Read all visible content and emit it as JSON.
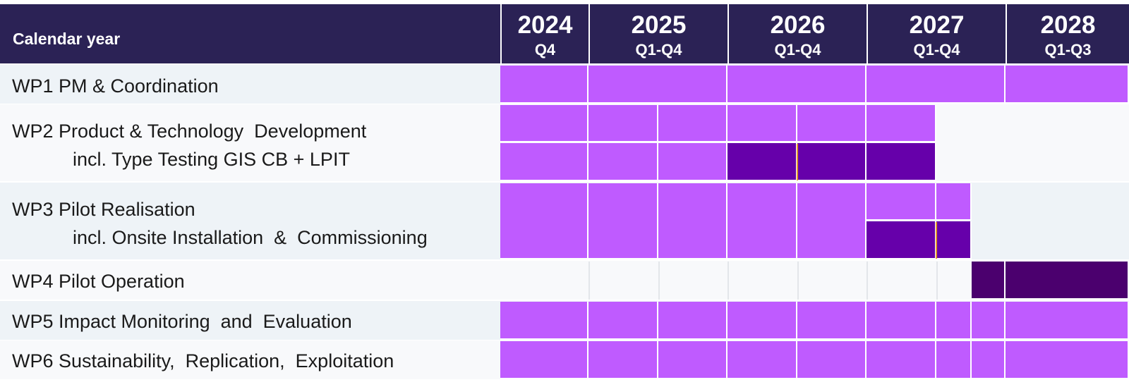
{
  "header": {
    "label": "Calendar year",
    "years": [
      {
        "year": "2024",
        "quarters": "Q4"
      },
      {
        "year": "2025",
        "quarters": "Q1-Q4"
      },
      {
        "year": "2026",
        "quarters": "Q1-Q4"
      },
      {
        "year": "2027",
        "quarters": "Q1-Q4"
      },
      {
        "year": "2028",
        "quarters": "Q1-Q3"
      }
    ]
  },
  "rows": [
    {
      "id": "wp1",
      "label": "WP1 PM & Coordination",
      "sublabel": ""
    },
    {
      "id": "wp2",
      "label": "WP2 Product & Technology  Development",
      "sublabel": "incl. Type Testing GIS CB + LPIT"
    },
    {
      "id": "wp3",
      "label": "WP3 Pilot Realisation",
      "sublabel": "incl. Onsite Installation  &  Commissioning"
    },
    {
      "id": "wp4",
      "label": "WP4 Pilot Operation",
      "sublabel": ""
    },
    {
      "id": "wp5",
      "label": "WP5 Impact Monitoring  and  Evaluation",
      "sublabel": ""
    },
    {
      "id": "wp6",
      "label": "WP6 Sustainability,  Replication,  Exploitation",
      "sublabel": ""
    }
  ],
  "colors": {
    "header_bg": "#2b2255",
    "activity": "#bf5bff",
    "type_testing": "#6600aa",
    "operation": "#4b006e",
    "row_bg_light": "#eef2f7",
    "row_bg_alt": "#f8f9fb"
  }
}
